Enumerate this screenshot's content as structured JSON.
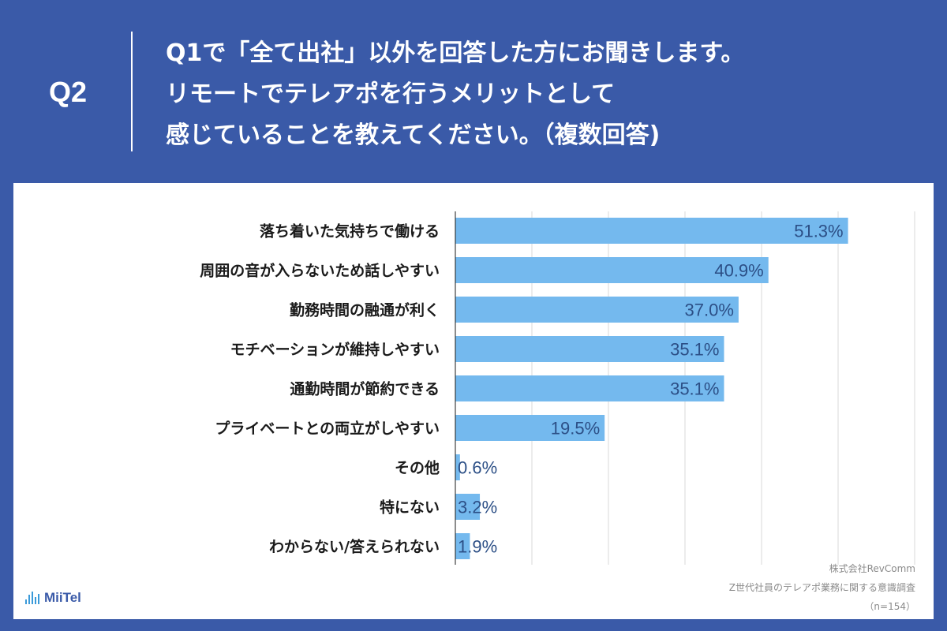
{
  "header": {
    "question_number": "Q2",
    "question_lines": [
      "Q1で「全て出社」以外を回答した方にお聞きします。",
      "リモートでテレアポを行うメリットとして",
      "感じていることを教えてください。（複数回答)"
    ]
  },
  "chart_data": {
    "type": "bar",
    "orientation": "horizontal",
    "categories": [
      "落ち着いた気持ちで働ける",
      "周囲の音が入らないため話しやすい",
      "勤務時間の融通が利く",
      "モチベーションが維持しやすい",
      "通勤時間が節約できる",
      "プライベートとの両立がしやすい",
      "その他",
      "特にない",
      "わからない/答えられない"
    ],
    "values": [
      51.3,
      40.9,
      37.0,
      35.1,
      35.1,
      19.5,
      0.6,
      3.2,
      1.9
    ],
    "value_labels": [
      "51.3%",
      "40.9%",
      "37.0%",
      "35.1%",
      "35.1%",
      "19.5%",
      "0.6%",
      "3.2%",
      "1.9%"
    ],
    "xlim": [
      0,
      60
    ],
    "grid": true,
    "bar_color": "#74b9ee",
    "value_color": "#2c4f86"
  },
  "footer": {
    "company": "株式会社RevComm",
    "survey": "Z世代社員のテレアポ業務に関する意識調査",
    "sample": "（n=154）"
  },
  "logo": {
    "text": "MiiTel",
    "icon": "sound-wave-icon"
  },
  "colors": {
    "background": "#3a5aa8",
    "panel": "#ffffff"
  }
}
